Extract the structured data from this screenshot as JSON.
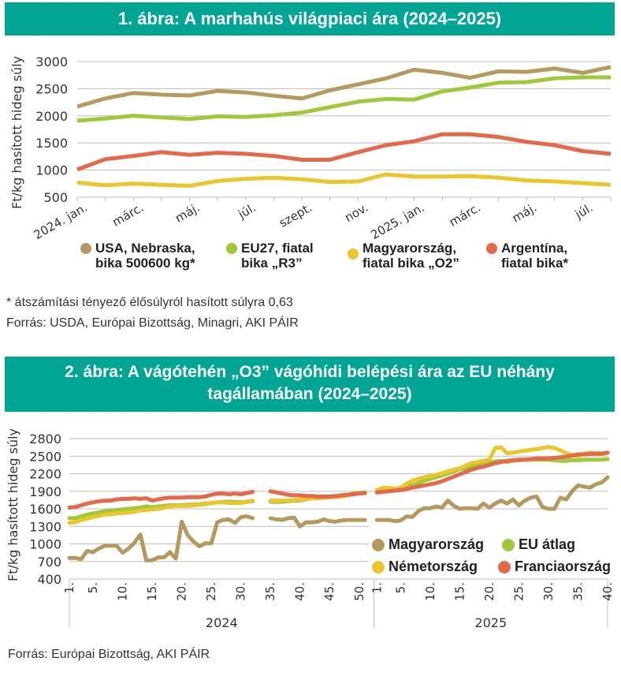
{
  "figure1": {
    "title": "1. ábra: A marhahús világpiaci ára (2024–2025)",
    "footnote": "* átszámítási tényező élősúlyról hasított súlyra 0,63",
    "source": "Forrás: USDA, Európai Bizottság, Minagri, AKI PÁIR"
  },
  "figure2": {
    "title_line1": "2. ábra: A vágótehén „O3” vágóhídi belépési ára az EU néhány",
    "title_line2": "tagállamában (2024–2025)",
    "source": "Forrás: Európai  Bizottság, AKI PÁIR"
  },
  "chart_data": [
    {
      "type": "line",
      "title": "1. ábra: A marhahús világpiaci ára (2024–2025)",
      "xlabel": "",
      "ylabel": "Ft/kg hasított hideg súly",
      "ylim": [
        500,
        3000
      ],
      "yticks": [
        500,
        1000,
        1500,
        2000,
        2500,
        3000
      ],
      "grid": true,
      "legend_position": "bottom",
      "x": [
        "2024. jan.",
        "febr.",
        "márc.",
        "ápr.",
        "máj.",
        "jún.",
        "júl.",
        "aug.",
        "szept.",
        "okt.",
        "nov.",
        "dec.",
        "2025. jan.",
        "febr.",
        "márc.",
        "ápr.",
        "máj.",
        "jún.",
        "júl.",
        "aug."
      ],
      "xtick_labels": [
        "2024. jan.",
        "",
        "márc.",
        "",
        "máj.",
        "",
        "júl.",
        "",
        "szept.",
        "",
        "nov.",
        "",
        "2025. jan.",
        "",
        "márc.",
        "",
        "máj.",
        "",
        "júl.",
        ""
      ],
      "series": [
        {
          "name": "USA, Nebraska, bika 500600 kg*",
          "legend_line1": "USA, Nebraska,",
          "legend_line2": "bika 500600 kg*",
          "color": "#b59a5f",
          "values": [
            2170,
            2320,
            2420,
            2390,
            2375,
            2460,
            2430,
            2370,
            2320,
            2470,
            2580,
            2690,
            2850,
            2790,
            2700,
            2820,
            2810,
            2870,
            2790,
            2900
          ]
        },
        {
          "name": "EU27, fiatal bika „R3”",
          "legend_line1": "EU27, fiatal",
          "legend_line2": "bika „R3”",
          "color": "#9dc93b",
          "values": [
            1910,
            1950,
            2000,
            1970,
            1940,
            1990,
            1980,
            2010,
            2060,
            2160,
            2260,
            2310,
            2300,
            2450,
            2520,
            2610,
            2620,
            2690,
            2710,
            2710
          ]
        },
        {
          "name": "Magyarország, fiatal bika „O2”",
          "legend_line1": "Magyarország,",
          "legend_line2": "fiatal bika „O2”",
          "color": "#eac62c",
          "values": [
            770,
            720,
            750,
            730,
            710,
            800,
            840,
            860,
            830,
            780,
            790,
            920,
            880,
            880,
            890,
            860,
            810,
            790,
            760,
            730
          ]
        },
        {
          "name": "Argentína, fiatal bika*",
          "legend_line1": "Argentína,",
          "legend_line2": "fiatal bika*",
          "color": "#e4684a",
          "values": [
            1010,
            1200,
            1260,
            1330,
            1280,
            1320,
            1300,
            1260,
            1190,
            1190,
            1330,
            1460,
            1530,
            1660,
            1660,
            1610,
            1520,
            1460,
            1350,
            1300
          ]
        }
      ]
    },
    {
      "type": "line",
      "title": "2. ábra: A vágótehén „O3” vágóhídi belépési ára az EU néhány tagállamában (2024–2025)",
      "xlabel": "",
      "ylabel": "Ft/kg hasított hideg súly",
      "ylim": [
        400,
        2800
      ],
      "yticks": [
        400,
        700,
        1000,
        1300,
        1600,
        1900,
        2200,
        2500,
        2800
      ],
      "grid": true,
      "legend_position": "bottom-right",
      "x_groups": [
        {
          "label": "2024",
          "weeks": 52,
          "tick_labels": [
            "1.",
            "5.",
            "10.",
            "15.",
            "20.",
            "25.",
            "30.",
            "35.",
            "40.",
            "45.",
            "50."
          ]
        },
        {
          "label": "2025",
          "weeks": 40,
          "tick_labels": [
            "1.",
            "5.",
            "10.",
            "15.",
            "20.",
            "25.",
            "30.",
            "35.",
            "40."
          ]
        }
      ],
      "gaps_2024_weeks": [
        33,
        34,
        52
      ],
      "series": [
        {
          "name": "Magyarország",
          "color": "#b59a5f",
          "values_2024": [
            760,
            760,
            740,
            880,
            860,
            920,
            970,
            970,
            970,
            850,
            920,
            1020,
            1160,
            720,
            720,
            770,
            770,
            860,
            750,
            1380,
            1150,
            1040,
            960,
            1010,
            1010,
            1370,
            1410,
            1420,
            1360,
            1460,
            1470,
            1440,
            null,
            null,
            1440,
            1420,
            1410,
            1440,
            1450,
            1300,
            1370,
            1370,
            1380,
            1420,
            1390,
            1380,
            1400,
            1410,
            1410,
            1410,
            1410,
            null
          ],
          "values_2025": [
            1410,
            1410,
            1410,
            1390,
            1400,
            1470,
            1460,
            1560,
            1610,
            1610,
            1640,
            1620,
            1740,
            1650,
            1600,
            1610,
            1610,
            1600,
            1690,
            1620,
            1690,
            1740,
            1690,
            1760,
            1660,
            1740,
            1790,
            1810,
            1630,
            1600,
            1600,
            1790,
            1760,
            1900,
            2000,
            1980,
            1960,
            2020,
            2050,
            2140
          ]
        },
        {
          "name": "EU átlag",
          "color": "#9dc93b",
          "values_2024": [
            1440,
            1440,
            1470,
            1500,
            1520,
            1540,
            1560,
            1570,
            1580,
            1590,
            1600,
            1610,
            1620,
            1640,
            1630,
            1640,
            1650,
            1660,
            1660,
            1660,
            1670,
            1670,
            1680,
            1690,
            1700,
            1710,
            1720,
            1720,
            1720,
            1710,
            1720,
            1730,
            null,
            null,
            1720,
            1720,
            1720,
            1730,
            1740,
            1740,
            1760,
            1780,
            1780,
            1790,
            1800,
            1810,
            1820,
            1840,
            1860,
            1870,
            1880,
            null
          ],
          "values_2025": [
            1880,
            1900,
            1910,
            1930,
            1960,
            1980,
            2000,
            2040,
            2080,
            2110,
            2140,
            2170,
            2200,
            2240,
            2280,
            2300,
            2320,
            2360,
            2380,
            2390,
            2410,
            2420,
            2400,
            2420,
            2430,
            2440,
            2440,
            2440,
            2440,
            2440,
            2430,
            2420,
            2420,
            2430,
            2430,
            2440,
            2440,
            2440,
            2440,
            2450
          ]
        },
        {
          "name": "Németország",
          "color": "#eac62c",
          "values_2024": [
            1360,
            1370,
            1410,
            1430,
            1460,
            1480,
            1500,
            1510,
            1520,
            1530,
            1540,
            1550,
            1570,
            1580,
            1590,
            1600,
            1620,
            1640,
            1650,
            1650,
            1650,
            1660,
            1670,
            1680,
            1700,
            1710,
            1710,
            1700,
            1700,
            1700,
            1720,
            1740,
            null,
            null,
            1740,
            1740,
            1740,
            1740,
            1750,
            1760,
            1770,
            1780,
            1780,
            1790,
            1800,
            1800,
            1810,
            1830,
            1850,
            1860,
            1870,
            null
          ],
          "values_2025": [
            1920,
            1960,
            1960,
            1940,
            1960,
            2030,
            2080,
            2110,
            2140,
            2160,
            2180,
            2210,
            2240,
            2270,
            2290,
            2340,
            2380,
            2400,
            2420,
            2440,
            2640,
            2650,
            2550,
            2560,
            2580,
            2590,
            2610,
            2620,
            2640,
            2660,
            2640,
            2600,
            2550,
            2520,
            2500,
            2540,
            2560,
            2550,
            2550,
            2560
          ]
        },
        {
          "name": "Franciaország",
          "color": "#e4684a",
          "values_2024": [
            1620,
            1630,
            1660,
            1690,
            1710,
            1730,
            1740,
            1740,
            1760,
            1770,
            1770,
            1780,
            1770,
            1780,
            1740,
            1760,
            1780,
            1790,
            1790,
            1790,
            1800,
            1800,
            1800,
            1810,
            1840,
            1860,
            1860,
            1850,
            1860,
            1850,
            1870,
            1890,
            null,
            null,
            1900,
            1880,
            1860,
            1840,
            1830,
            1830,
            1820,
            1820,
            1810,
            1810,
            1810,
            1820,
            1830,
            1840,
            1850,
            1860,
            1870,
            null
          ],
          "values_2025": [
            1880,
            1890,
            1900,
            1910,
            1920,
            1940,
            1960,
            1980,
            2000,
            2020,
            2040,
            2070,
            2110,
            2150,
            2190,
            2230,
            2270,
            2300,
            2320,
            2350,
            2380,
            2400,
            2420,
            2430,
            2440,
            2440,
            2450,
            2460,
            2460,
            2460,
            2470,
            2480,
            2490,
            2510,
            2530,
            2530,
            2540,
            2540,
            2540,
            2560
          ]
        }
      ]
    }
  ]
}
